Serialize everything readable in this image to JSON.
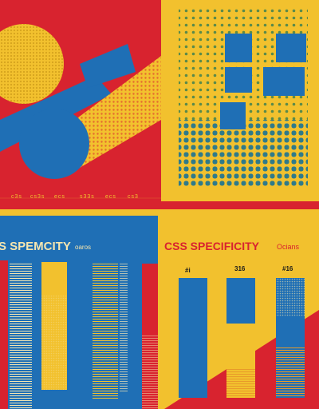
{
  "colors": {
    "red": "#d8232f",
    "blue": "#1f6fb5",
    "yellow": "#f2c12e",
    "cream": "#f5e6b0",
    "dark": "#1a1a1a"
  },
  "top_left": {
    "tick_labels": [
      "c3s",
      "cs3s",
      "ecs",
      "s33s",
      "ecs",
      "cs3"
    ]
  },
  "bottom_left": {
    "title": "S SPEMCITY",
    "subtitle": "oaros"
  },
  "bottom_right": {
    "title": "CSS SPECIFICITY",
    "subtitle": "Ocians",
    "bar_labels": [
      "#i",
      "316",
      "#16"
    ],
    "bars": [
      {
        "blue_fraction": 1.0,
        "orange_fraction": 0.0
      },
      {
        "blue_fraction": 0.38,
        "orange_fraction": 0.25
      },
      {
        "blue_fraction": 0.58,
        "orange_fraction": 0.42
      }
    ]
  }
}
